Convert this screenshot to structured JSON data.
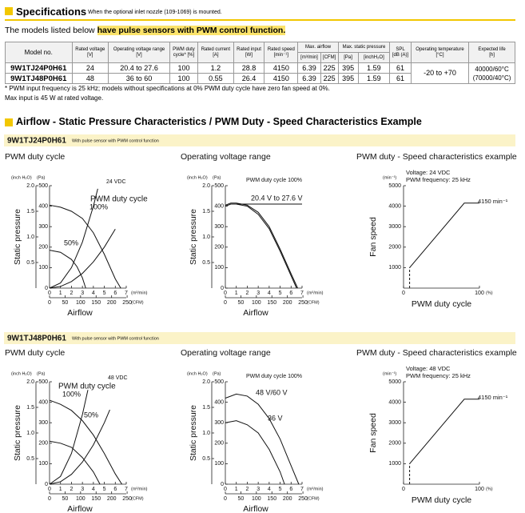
{
  "header": {
    "title": "Specifications",
    "note": "When the optional inlet nozzle (109-1069) is mounted."
  },
  "intro": {
    "text": "The models listed below ",
    "highlight": "have pulse sensors with PWM control function."
  },
  "table": {
    "headers": [
      {
        "label": "Model no."
      },
      {
        "label": "Rated voltage",
        "unit": "[V]"
      },
      {
        "label": "Operating voltage range",
        "unit": "[V]"
      },
      {
        "label": "PWM duty",
        "unit": "cycle* [%]"
      },
      {
        "label": "Rated current",
        "unit": "[A]"
      },
      {
        "label": "Rated input",
        "unit": "[W]"
      },
      {
        "label": "Rated speed",
        "unit": "[min⁻¹]"
      },
      {
        "label": "Max. airflow",
        "units": [
          "[m³/min]",
          "[CFM]"
        ]
      },
      {
        "label": "Max. static pressure",
        "units": [
          "[Pa]",
          "[inchH₂O]"
        ]
      },
      {
        "label": "SPL",
        "unit": "[dB (A)]"
      },
      {
        "label": "Operating temperature",
        "unit": "[°C]"
      },
      {
        "label": "Expected life",
        "unit": "[h]"
      }
    ],
    "rows": [
      [
        "9W1TJ24P0H61",
        "24",
        "20.4 to 27.6",
        "100",
        "1.2",
        "28.8",
        "4150",
        "6.39",
        "225",
        "395",
        "1.59",
        "61"
      ],
      [
        "9W1TJ48P0H61",
        "48",
        "36 to 60",
        "100",
        "0.55",
        "26.4",
        "4150",
        "6.39",
        "225",
        "395",
        "1.59",
        "61"
      ]
    ],
    "operating_temperature": "-20 to +70",
    "expected_life": [
      "40000/60°C",
      "(70000/40°C)"
    ]
  },
  "notes": [
    "* PWM input frequency is 25 kHz; models without specifications at 0% PWM duty cycle have zero fan speed at 0%.",
    "Max input is 45 W at rated voltage."
  ],
  "section_title": "Airflow - Static Pressure Characteristics / PWM Duty - Speed Characteristics Example",
  "models": [
    {
      "name": "9W1TJ24P0H61",
      "description": "With pulse sensor with PWM control function",
      "charts": [
        {
          "type": "pq",
          "title": "PWM duty cycle",
          "labels": [
            "24 VDC",
            "PWM duty cycle",
            "100%",
            "50%"
          ],
          "y_label": "Static pressure",
          "x_label": "Airflow",
          "y_unit": "(Pa)",
          "y2_unit": "(inch H₂O)",
          "x_unit": "(m³/min)",
          "x2_unit": "(CFM)",
          "ylim": [
            0,
            500
          ],
          "yticks": [
            0,
            100,
            200,
            300,
            400,
            500
          ],
          "y2lim": [
            0,
            2
          ],
          "y2ticks": [
            0.5,
            {
              "value": 1,
              "label": "1.0"
            },
            1.5,
            {
              "value": 2,
              "label": "2.0"
            }
          ],
          "xlim": [
            0,
            7
          ],
          "xticks": [
            0,
            1,
            2,
            3,
            4,
            5,
            6,
            7
          ],
          "x2lim": [
            0,
            247.2
          ],
          "x2ticks": [
            0,
            50,
            100,
            150,
            200,
            250
          ],
          "series": [
            {
              "x": [
                0,
                1,
                2,
                3,
                4,
                5,
                6,
                6.5
              ],
              "y": [
                405,
                395,
                375,
                340,
                270,
                165,
                45,
                0
              ]
            },
            {
              "x": [
                0,
                1,
                2,
                2.5,
                3,
                3.3
              ],
              "y": [
                185,
                175,
                140,
                105,
                50,
                0
              ]
            },
            {
              "x": [
                0,
                1,
                2,
                3,
                4,
                4.4
              ],
              "y": [
                0,
                25,
                100,
                225,
                400,
                485
              ]
            },
            {
              "x": [
                0,
                1,
                2,
                3,
                4,
                5,
                6
              ],
              "y": [
                0,
                8,
                32,
                72,
                128,
                200,
                288
              ]
            }
          ]
        },
        {
          "type": "pq",
          "title": "Operating voltage range",
          "labels": [
            "PWM duty cycle 100%",
            "20.4 V to 27.6 V"
          ],
          "y_label": "Static pressure",
          "x_label": "Airflow",
          "y_unit": "(Pa)",
          "y2_unit": "(inch H₂O)",
          "x_unit": "(m³/min)",
          "x2_unit": "(CFM)",
          "ylim": [
            0,
            500
          ],
          "yticks": [
            0,
            100,
            200,
            300,
            400,
            500
          ],
          "y2lim": [
            0,
            2
          ],
          "y2ticks": [
            0.5,
            {
              "value": 1,
              "label": "1.0"
            },
            1.5,
            {
              "value": 2,
              "label": "2.0"
            }
          ],
          "xlim": [
            0,
            7
          ],
          "xticks": [
            0,
            1,
            2,
            3,
            4,
            5,
            6,
            7
          ],
          "x2lim": [
            0,
            247.2
          ],
          "x2ticks": [
            0,
            50,
            100,
            150,
            200,
            250
          ],
          "series": [
            {
              "x": [
                0,
                0.5,
                1,
                2,
                3,
                4,
                5,
                6,
                6.5
              ],
              "y": [
                400,
                410,
                410,
                400,
                360,
                290,
                180,
                60,
                0
              ]
            },
            {
              "x": [
                0,
                0.5,
                1,
                2,
                3,
                4,
                5,
                6,
                6.6
              ],
              "y": [
                405,
                415,
                415,
                405,
                370,
                300,
                190,
                70,
                0
              ]
            },
            {
              "x": [
                1,
                7
              ],
              "y": [
                410,
                410
              ]
            }
          ]
        },
        {
          "type": "speed",
          "title": "PWM duty - Speed characteristics example",
          "labels": [
            "Voltage: 24 VDC",
            "PWM frequency: 25 kHz",
            "4150 min⁻¹"
          ],
          "y_label": "Fan speed",
          "x_label": "PWM duty cycle",
          "y_unit": "(min⁻¹)",
          "x_unit": "(%)",
          "xlim": [
            0,
            100
          ],
          "xticks": [
            0,
            100
          ],
          "ylim": [
            0,
            5000
          ],
          "yticks": [
            1000,
            2000,
            3000,
            4000,
            5000
          ],
          "series": [
            {
              "x": [
                8,
                8
              ],
              "y": [
                0,
                1000
              ],
              "dashed": true
            },
            {
              "x": [
                8,
                80,
                100
              ],
              "y": [
                1000,
                4150,
                4150
              ]
            }
          ]
        }
      ]
    },
    {
      "name": "9W1TJ48P0H61",
      "description": "With pulse sensor with PWM control function",
      "charts": [
        {
          "type": "pq",
          "title": "PWM duty cycle",
          "labels": [
            "48 VDC",
            "PWM duty cycle",
            "100%",
            "50%"
          ],
          "y_label": "Static pressure",
          "x_label": "Airflow",
          "y_unit": "(Pa)",
          "y2_unit": "(inch H₂O)",
          "x_unit": "(m³/min)",
          "x2_unit": "(CFM)",
          "ylim": [
            0,
            500
          ],
          "yticks": [
            0,
            100,
            200,
            300,
            400,
            500
          ],
          "y2lim": [
            0,
            2
          ],
          "y2ticks": [
            0.5,
            {
              "value": 1,
              "label": "1.0"
            },
            1.5,
            {
              "value": 2,
              "label": "2.0"
            }
          ],
          "xlim": [
            0,
            7
          ],
          "xticks": [
            0,
            1,
            2,
            3,
            4,
            5,
            6,
            7
          ],
          "x2lim": [
            0,
            247.2
          ],
          "x2ticks": [
            0,
            50,
            100,
            150,
            200,
            250
          ],
          "series": [
            {
              "x": [
                0,
                1,
                2,
                3,
                4,
                5,
                6,
                6.6
              ],
              "y": [
                410,
                390,
                360,
                310,
                240,
                150,
                50,
                0
              ]
            },
            {
              "x": [
                0,
                1,
                2,
                3,
                4,
                4.6
              ],
              "y": [
                210,
                200,
                180,
                130,
                60,
                0
              ]
            },
            {
              "x": [
                0,
                1,
                2,
                3,
                3.5
              ],
              "y": [
                0,
                38,
                150,
                340,
                460
              ]
            },
            {
              "x": [
                0,
                1,
                2,
                3,
                4,
                5,
                5.5
              ],
              "y": [
                0,
                12,
                48,
                108,
                192,
                300,
                363
              ]
            }
          ]
        },
        {
          "type": "pq",
          "title": "Operating voltage range",
          "labels": [
            "PWM duty cycle 100%",
            "48 V/60 V",
            "36 V"
          ],
          "y_label": "Static pressure",
          "x_label": "Airflow",
          "y_unit": "(Pa)",
          "y2_unit": "(inch H₂O)",
          "x_unit": "(m³/min)",
          "x2_unit": "(CFM)",
          "ylim": [
            0,
            500
          ],
          "yticks": [
            0,
            100,
            200,
            300,
            400,
            500
          ],
          "y2lim": [
            0,
            2
          ],
          "y2ticks": [
            0.5,
            {
              "value": 1,
              "label": "1.0"
            },
            1.5,
            {
              "value": 2,
              "label": "2.0"
            }
          ],
          "xlim": [
            0,
            7
          ],
          "xticks": [
            0,
            1,
            2,
            3,
            4,
            5,
            6,
            7
          ],
          "x2lim": [
            0,
            247.2
          ],
          "x2ticks": [
            0,
            50,
            100,
            150,
            200,
            250
          ],
          "series": [
            {
              "x": [
                0,
                1,
                2,
                3,
                4,
                5,
                6,
                6.7
              ],
              "y": [
                420,
                440,
                430,
                390,
                320,
                220,
                90,
                0
              ]
            },
            {
              "x": [
                0,
                1,
                2,
                3,
                4,
                5,
                5.4
              ],
              "y": [
                300,
                310,
                290,
                250,
                170,
                60,
                0
              ]
            }
          ]
        },
        {
          "type": "speed",
          "title": "PWM duty - Speed characteristics example",
          "labels": [
            "Voltage: 48 VDC",
            "PWM frequency: 25 kHz",
            "4150 min⁻¹"
          ],
          "y_label": "Fan speed",
          "x_label": "PWM duty cycle",
          "y_unit": "(min⁻¹)",
          "x_unit": "(%)",
          "xlim": [
            0,
            100
          ],
          "xticks": [
            0,
            100
          ],
          "ylim": [
            0,
            5000
          ],
          "yticks": [
            1000,
            2000,
            3000,
            4000,
            5000
          ],
          "series": [
            {
              "x": [
                8,
                8
              ],
              "y": [
                0,
                1000
              ],
              "dashed": true
            },
            {
              "x": [
                8,
                80,
                100
              ],
              "y": [
                1000,
                4150,
                4150
              ]
            }
          ]
        }
      ]
    }
  ]
}
